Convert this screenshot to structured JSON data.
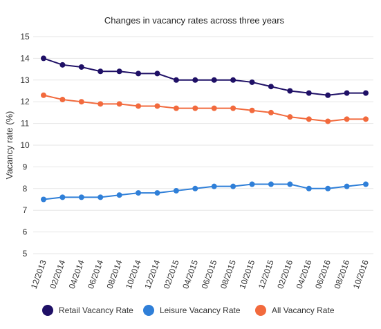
{
  "chart_data": {
    "type": "line",
    "title": "Changes in vacancy rates across three years",
    "xlabel": "",
    "ylabel": "Vacancy rate (%)",
    "ylim": [
      5,
      15
    ],
    "yticks": [
      5,
      6,
      7,
      8,
      9,
      10,
      11,
      12,
      13,
      14,
      15
    ],
    "grid": true,
    "legend_position": "bottom",
    "categories": [
      "12/2013",
      "02/2014",
      "04/2014",
      "06/2014",
      "08/2014",
      "10/2014",
      "12/2014",
      "02/2015",
      "04/2015",
      "06/2015",
      "08/2015",
      "10/2015",
      "12/2015",
      "02/2016",
      "04/2016",
      "06/2016",
      "08/2016",
      "10/2016"
    ],
    "series": [
      {
        "name": "Retail Vacancy Rate",
        "color": "#1f1066",
        "values": [
          14.0,
          13.7,
          13.6,
          13.4,
          13.4,
          13.3,
          13.3,
          13.0,
          13.0,
          13.0,
          13.0,
          12.9,
          12.7,
          12.5,
          12.4,
          12.3,
          12.4,
          12.4
        ]
      },
      {
        "name": "Leisure Vacancy Rate",
        "color": "#2f7fd8",
        "values": [
          7.5,
          7.6,
          7.6,
          7.6,
          7.7,
          7.8,
          7.8,
          7.9,
          8.0,
          8.1,
          8.1,
          8.2,
          8.2,
          8.2,
          8.0,
          8.0,
          8.1,
          8.2
        ]
      },
      {
        "name": "All Vacancy Rate",
        "color": "#f26a3d",
        "values": [
          12.3,
          12.1,
          12.0,
          11.9,
          11.9,
          11.8,
          11.8,
          11.7,
          11.7,
          11.7,
          11.7,
          11.6,
          11.5,
          11.3,
          11.2,
          11.1,
          11.2,
          11.2
        ]
      }
    ]
  }
}
